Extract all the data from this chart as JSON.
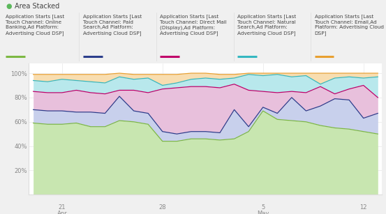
{
  "title": "Area Stacked",
  "title_dot_color": "#5cb85c",
  "background_color": "#f0f0f0",
  "plot_background": "#ffffff",
  "legend_entries": [
    {
      "label": "Application Starts [Last\nTouch Channel: Online\nBanking,Ad Platform:\nAdvertising Cloud DSP]",
      "color": "#7db843"
    },
    {
      "label": "Application Starts [Last\nTouch Channel: Paid\nSearch,Ad Platform:\nAdvertising Cloud DSP]",
      "color": "#2c3e8c"
    },
    {
      "label": "Application Starts [Last\nTouch Channel: Direct Mail\n(Display),Ad Platform:\nAdvertising Cloud DSP]",
      "color": "#c0006a"
    },
    {
      "label": "Application Starts [Last\nTouch Channel: Natural\nSearch,Ad Platform:\nAdvertising Cloud DSP]",
      "color": "#35b7c1"
    },
    {
      "label": "Application Starts [Last\nTouch Channel: Email,Ad\nPlatform: Advertising Cloud\nDSP]",
      "color": "#e8a030"
    }
  ],
  "x_tick_labels": [
    "21",
    "28",
    "5",
    "12"
  ],
  "x_tick_sublabels": [
    "Apr",
    "",
    "May",
    ""
  ],
  "x_tick_positions": [
    2,
    9,
    16,
    23
  ],
  "y_tick_labels": [
    "20%",
    "40%",
    "60%",
    "80%",
    "100%"
  ],
  "y_tick_positions": [
    20,
    40,
    60,
    80,
    100
  ],
  "series": {
    "green": [
      59,
      58,
      58,
      59,
      56,
      56,
      61,
      60,
      58,
      44,
      44,
      46,
      46,
      45,
      46,
      52,
      69,
      62,
      61,
      60,
      57,
      55,
      54,
      52,
      50
    ],
    "navy": [
      70,
      69,
      69,
      68,
      68,
      67,
      81,
      69,
      67,
      52,
      50,
      52,
      52,
      51,
      70,
      56,
      72,
      67,
      80,
      69,
      73,
      79,
      78,
      63,
      67
    ],
    "pink": [
      85,
      84,
      84,
      86,
      84,
      83,
      86,
      86,
      84,
      87,
      88,
      89,
      89,
      88,
      91,
      86,
      85,
      84,
      85,
      84,
      89,
      83,
      87,
      90,
      80
    ],
    "cyan": [
      94,
      93,
      95,
      94,
      93,
      92,
      97,
      95,
      96,
      90,
      92,
      95,
      96,
      95,
      96,
      99,
      98,
      99,
      97,
      98,
      91,
      96,
      97,
      96,
      97
    ],
    "orange": [
      99,
      99,
      99,
      99,
      99,
      99,
      100,
      99,
      99,
      99,
      99,
      100,
      100,
      99,
      99,
      100,
      100,
      100,
      100,
      100,
      100,
      100,
      100,
      100,
      100
    ]
  },
  "series_colors": {
    "green": "#c8e6b0",
    "navy": "#c8d0ec",
    "pink": "#e8c0dc",
    "cyan": "#b8e8ec",
    "orange": "#f8ddb0"
  },
  "line_colors": {
    "green": "#7db843",
    "navy": "#2c3e8c",
    "pink": "#c0006a",
    "cyan": "#35b7c1",
    "orange": "#e8a030"
  }
}
